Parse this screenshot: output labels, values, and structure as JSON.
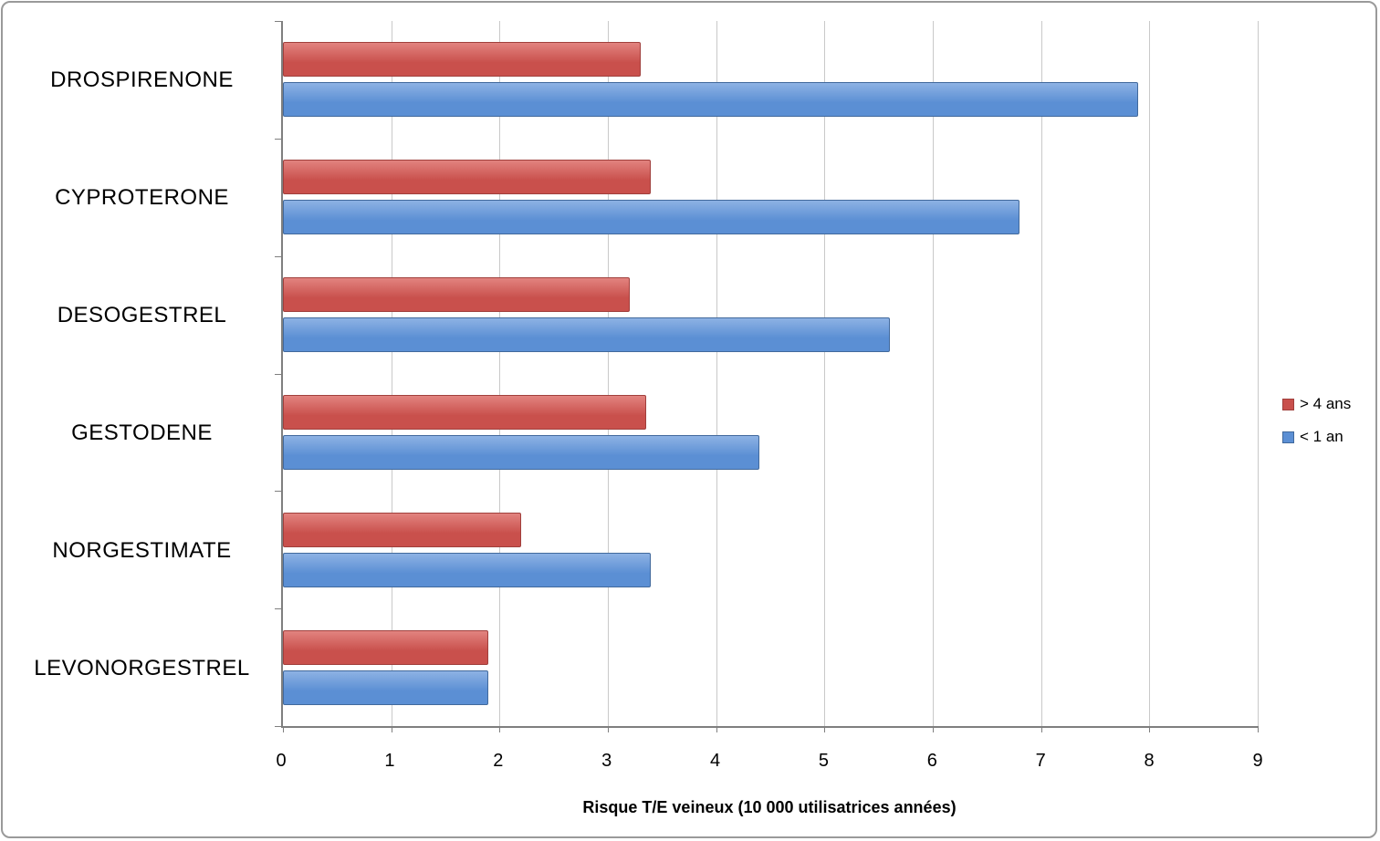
{
  "chart_data": {
    "type": "bar",
    "orientation": "horizontal",
    "title": "",
    "xlabel": "Risque T/E veineux (10 000 utilisatrices années)",
    "ylabel": "",
    "xlim": [
      0,
      9
    ],
    "xticks": [
      0,
      1,
      2,
      3,
      4,
      5,
      6,
      7,
      8,
      9
    ],
    "grid": true,
    "legend_position": "right",
    "categories": [
      "DROSPIRENONE",
      "CYPROTERONE",
      "DESOGESTREL",
      "GESTODENE",
      "NORGESTIMATE",
      "LEVONORGESTREL"
    ],
    "series": [
      {
        "name": "> 4 ans",
        "color": "#c9504c",
        "color_light": "#e2837f",
        "color_dark": "#a03f3c",
        "values": [
          3.3,
          3.4,
          3.2,
          3.35,
          2.2,
          1.9
        ]
      },
      {
        "name": "< 1 an",
        "color": "#5b8fd4",
        "color_light": "#8db2e4",
        "color_dark": "#41699c",
        "values": [
          7.9,
          6.8,
          5.6,
          4.4,
          3.4,
          1.9
        ]
      }
    ]
  }
}
